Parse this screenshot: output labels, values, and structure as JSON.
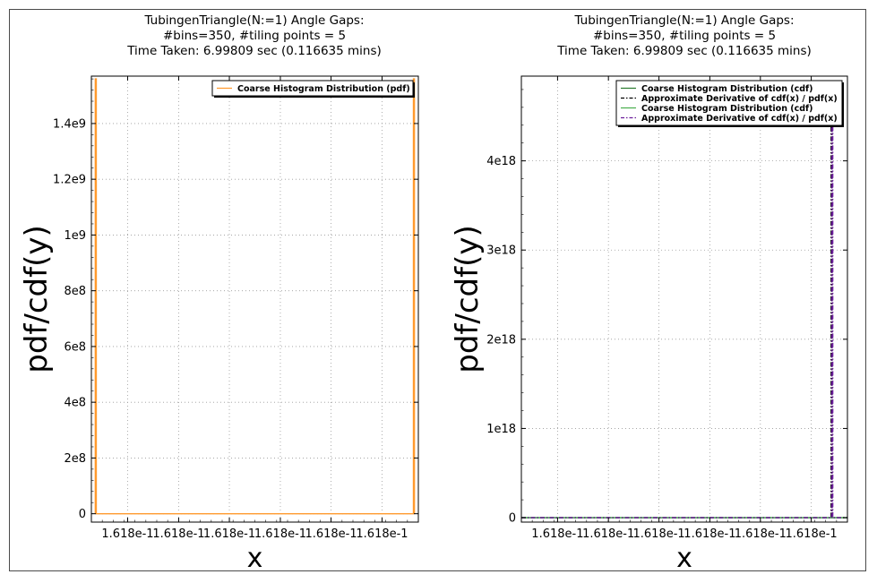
{
  "chart_data": [
    {
      "type": "line",
      "title_lines": [
        "TubingenTriangle(N:=1) Angle Gaps:",
        "#bins=350, #tiling points = 5",
        "Time Taken: 6.99809 sec (0.116635 mins)"
      ],
      "xlabel": "x",
      "ylabel": "pdf/cdf(y)",
      "x_tick_labels": [
        "1.618e-1",
        "1.618e-1",
        "1.618e-1",
        "1.618e-1",
        "1.618e-1",
        "1.618e-1"
      ],
      "x_range": [
        0,
        1
      ],
      "x_ticks": [
        0.111,
        0.267,
        0.422,
        0.578,
        0.733,
        0.889
      ],
      "y_ticks": [
        0,
        200000000,
        400000000,
        600000000,
        800000000,
        1000000000,
        1200000000,
        1400000000
      ],
      "y_tick_labels": [
        "0",
        "2e8",
        "4e8",
        "6e8",
        "8e8",
        "1e9",
        "1.2e9",
        "1.4e9"
      ],
      "ylim": [
        -30000000,
        1570000000
      ],
      "grid": true,
      "legend_position": "top-right",
      "series": [
        {
          "name": "Coarse Histogram Distribution (pdf)",
          "color": "#ff9a2e",
          "style": "solid",
          "points": [
            [
              0.012,
              0
            ],
            [
              0.012,
              1560000000
            ],
            [
              0.015,
              1560000000
            ],
            [
              0.015,
              0
            ],
            [
              0.985,
              0
            ],
            [
              0.985,
              1560000000
            ],
            [
              0.988,
              1560000000
            ],
            [
              0.988,
              0
            ]
          ]
        }
      ]
    },
    {
      "type": "line",
      "title_lines": [
        "TubingenTriangle(N:=1) Angle Gaps:",
        "#bins=350, #tiling points = 5",
        "Time Taken: 6.99809 sec (0.116635 mins)"
      ],
      "xlabel": "x",
      "ylabel": "pdf/cdf(y)",
      "x_tick_labels": [
        "1.618e-1",
        "1.618e-1",
        "1.618e-1",
        "1.618e-1",
        "1.618e-1",
        "1.618e-1"
      ],
      "x_range": [
        0,
        1
      ],
      "x_ticks": [
        0.111,
        0.267,
        0.422,
        0.578,
        0.733,
        0.889
      ],
      "y_ticks": [
        0,
        1e+18,
        2e+18,
        3e+18,
        4e+18
      ],
      "y_tick_labels": [
        "0",
        "1e18",
        "2e18",
        "3e18",
        "4e18"
      ],
      "ylim": [
        -5e+16,
        4.95e+18
      ],
      "grid": true,
      "legend_position": "top-right",
      "series": [
        {
          "name": "Coarse Histogram Distribution (cdf)",
          "color": "#2e7d32",
          "style": "solid",
          "points": [
            [
              0,
              0
            ],
            [
              1,
              0
            ]
          ]
        },
        {
          "name": "Approximate Derivative of cdf(x) / pdf(x)",
          "color": "#000000",
          "style": "dashdot",
          "points": [
            [
              0,
              0
            ],
            [
              0.95,
              0
            ],
            [
              0.95,
              4.4e+18
            ],
            [
              0.953,
              4.4e+18
            ],
            [
              0.953,
              0
            ],
            [
              1,
              0
            ]
          ]
        },
        {
          "name": "Coarse Histogram Distribution (cdf)",
          "color": "#4caf50",
          "style": "solid",
          "points": [
            [
              0,
              0
            ],
            [
              1,
              0
            ]
          ]
        },
        {
          "name": "Approximate Derivative of cdf(x) / pdf(x)",
          "color": "#6a1b9a",
          "style": "dashdot",
          "points": [
            [
              0,
              0
            ],
            [
              0.952,
              0
            ],
            [
              0.952,
              4.4e+18
            ],
            [
              0.955,
              4.4e+18
            ],
            [
              0.955,
              0
            ],
            [
              1,
              0
            ]
          ]
        }
      ]
    }
  ]
}
